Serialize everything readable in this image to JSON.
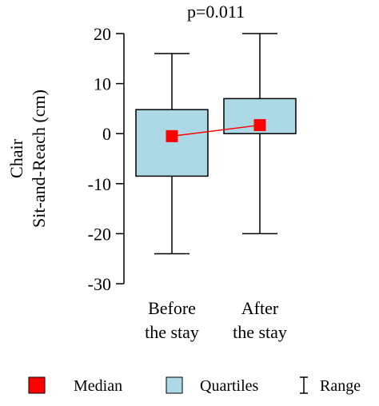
{
  "chart_data": {
    "type": "box",
    "title": "",
    "annotation": "p=0.011",
    "ylabel_lines": [
      "Chair",
      "Sit-and-Reach (cm)"
    ],
    "ylim": [
      -30,
      20
    ],
    "yticks": [
      20,
      10,
      0,
      -10,
      -20,
      -30
    ],
    "categories": [
      {
        "lines": [
          "Before",
          "the stay"
        ]
      },
      {
        "lines": [
          "After",
          "the stay"
        ]
      }
    ],
    "boxes": [
      {
        "min": -24,
        "q1": -8.5,
        "median": -0.5,
        "q3": 4.8,
        "max": 16
      },
      {
        "min": -20,
        "q1": 0,
        "median": 1.7,
        "q3": 7,
        "max": 20
      }
    ],
    "median_line": true,
    "grid": false,
    "colors": {
      "box_fill": "#add8e6",
      "median": "#ff0000",
      "median_line": "#ff0000",
      "stroke": "#000000"
    },
    "legend": {
      "position": "bottom",
      "items": [
        {
          "label": "Median",
          "kind": "square",
          "color": "#ff0000"
        },
        {
          "label": "Quartiles",
          "kind": "box",
          "color": "#add8e6"
        },
        {
          "label": "Range",
          "kind": "whisker",
          "color": "#000000"
        }
      ]
    }
  }
}
